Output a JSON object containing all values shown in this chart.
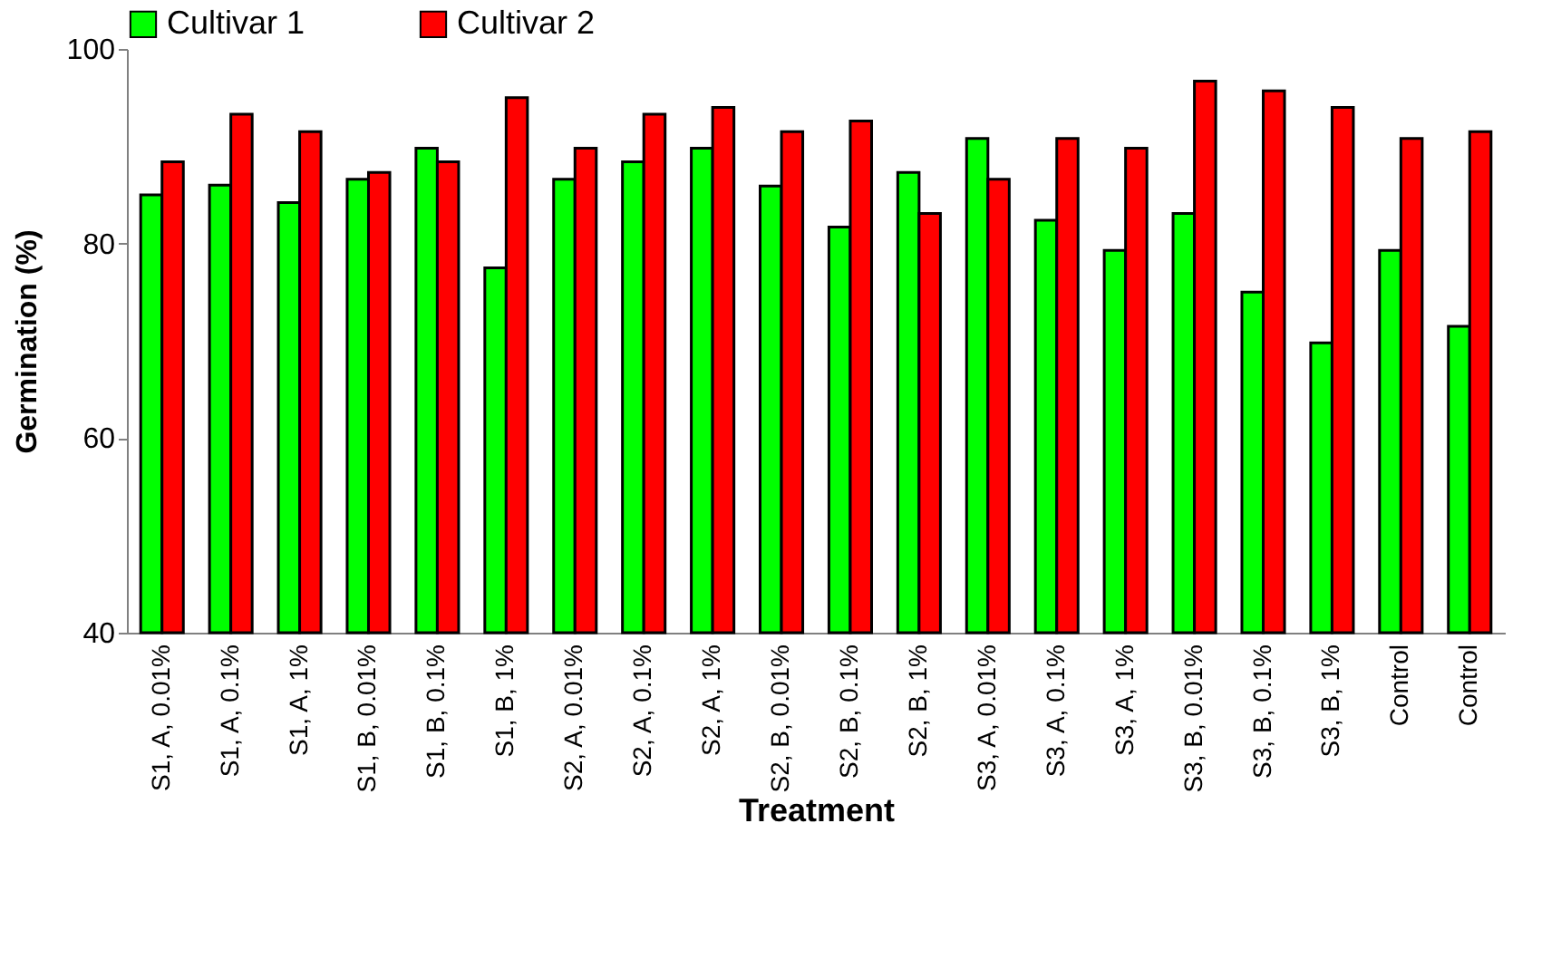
{
  "chart_data": {
    "type": "bar",
    "xlabel": "Treatment",
    "ylabel": "Germination (%)",
    "categories": [
      "S1, A, 0.01%",
      "S1, A, 0.1%",
      "S1, A, 1%",
      "S1, B, 0.01%",
      "S1, B, 0.1%",
      "S1, B, 1%",
      "S2, A, 0.01%",
      "S2, A, 0.1%",
      "S2, A, 1%",
      "S2, B, 0.01%",
      "S2, B, 0.1%",
      "S2, B, 1%",
      "S3, A, 0.01%",
      "S3, A, 0.1%",
      "S3, A, 1%",
      "S3, B, 0.01%",
      "S3, B, 0.1%",
      "S3, B, 1%",
      "Control",
      "Control"
    ],
    "series": [
      {
        "name": "Cultivar 1",
        "color": "#00ff00",
        "values": [
          85,
          86,
          84.2,
          86.6,
          89.8,
          77.5,
          86.6,
          88.4,
          89.8,
          85.9,
          81.7,
          87.3,
          90.8,
          82.4,
          79.3,
          83.1,
          75,
          69.8,
          79.3,
          71.5
        ]
      },
      {
        "name": "Cultivar 2",
        "color": "#ff0000",
        "values": [
          88.4,
          93.3,
          91.5,
          87.3,
          88.4,
          95,
          89.8,
          93.3,
          94,
          91.5,
          92.6,
          83.1,
          86.6,
          90.8,
          89.8,
          96.7,
          95.7,
          94,
          90.8,
          91.5
        ]
      }
    ],
    "ylim": [
      40,
      100
    ],
    "yticks": [
      40,
      60,
      80,
      100
    ],
    "grid": false,
    "legend": "top"
  }
}
